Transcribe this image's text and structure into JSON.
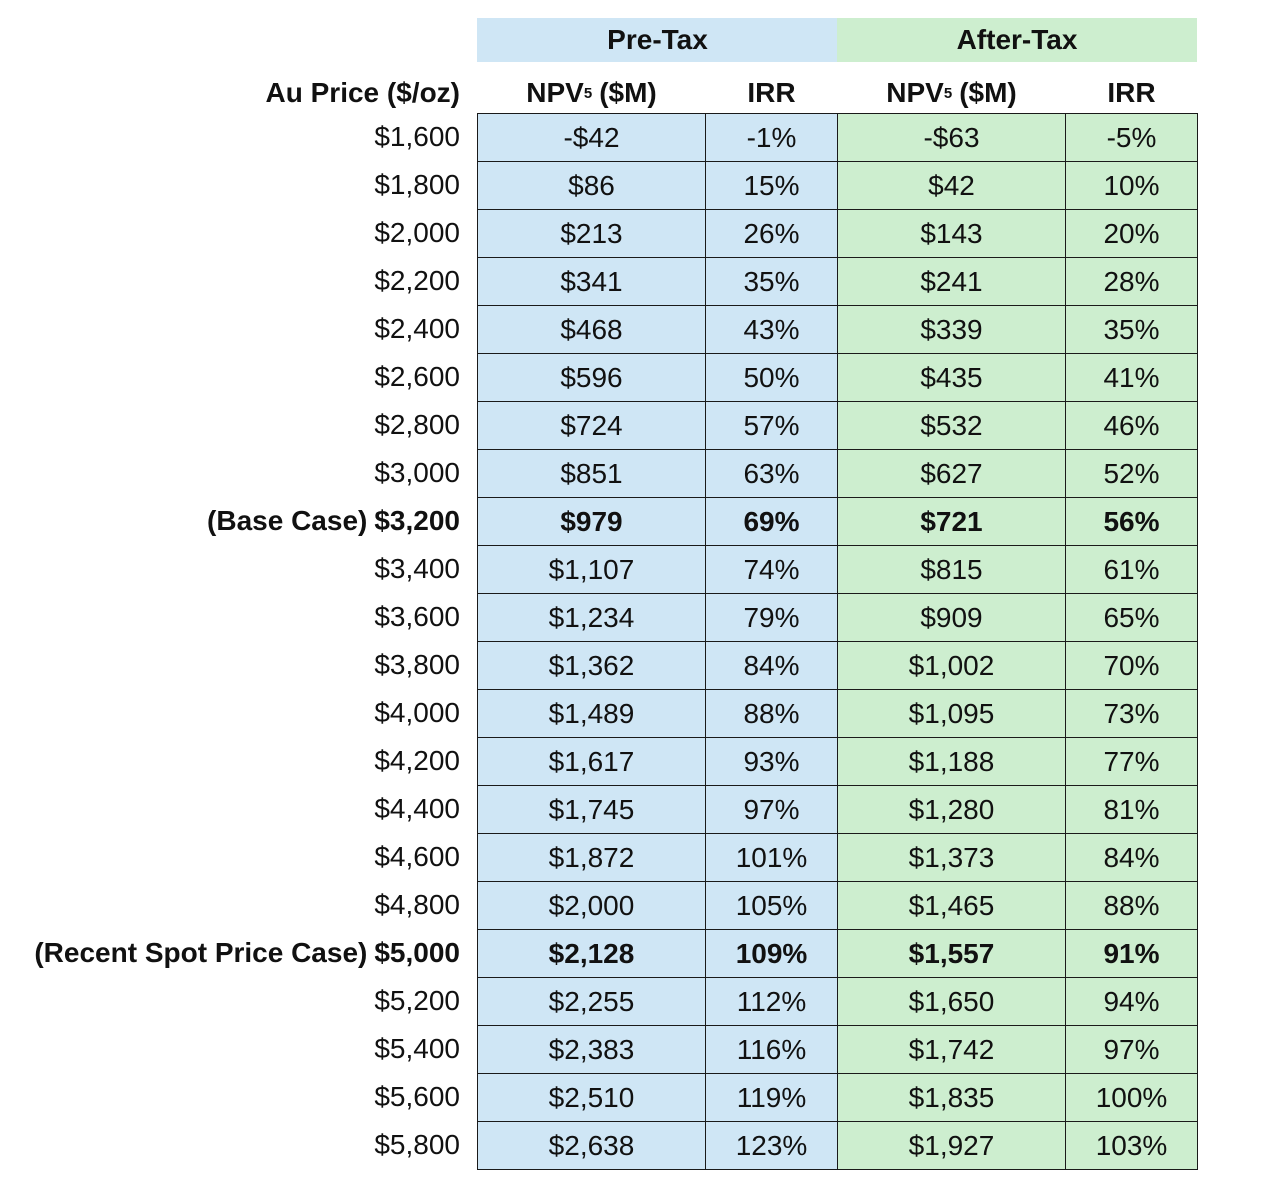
{
  "table": {
    "groups": [
      {
        "label": "Pre-Tax",
        "color": "#cfe6f5"
      },
      {
        "label": "After-Tax",
        "color": "#cdeecf"
      }
    ],
    "columns": [
      {
        "text": "Au Price ($/oz)"
      },
      {
        "main": "NPV",
        "sub": "5",
        "unit": "($M)"
      },
      {
        "text": "IRR"
      },
      {
        "main": "NPV",
        "sub": "5",
        "unit": "($M)"
      },
      {
        "text": "IRR"
      }
    ],
    "rows": [
      {
        "cells": [
          "$1,600",
          "-$42",
          "-1%",
          "-$63",
          "-5%"
        ]
      },
      {
        "cells": [
          "$1,800",
          "$86",
          "15%",
          "$42",
          "10%"
        ]
      },
      {
        "cells": [
          "$2,000",
          "$213",
          "26%",
          "$143",
          "20%"
        ]
      },
      {
        "cells": [
          "$2,200",
          "$341",
          "35%",
          "$241",
          "28%"
        ]
      },
      {
        "cells": [
          "$2,400",
          "$468",
          "43%",
          "$339",
          "35%"
        ]
      },
      {
        "cells": [
          "$2,600",
          "$596",
          "50%",
          "$435",
          "41%"
        ]
      },
      {
        "cells": [
          "$2,800",
          "$724",
          "57%",
          "$532",
          "46%"
        ]
      },
      {
        "cells": [
          "$3,000",
          "$851",
          "63%",
          "$627",
          "52%"
        ]
      },
      {
        "note": "(Base Case)",
        "bold": true,
        "cells": [
          "$3,200",
          "$979",
          "69%",
          "$721",
          "56%"
        ]
      },
      {
        "cells": [
          "$3,400",
          "$1,107",
          "74%",
          "$815",
          "61%"
        ]
      },
      {
        "cells": [
          "$3,600",
          "$1,234",
          "79%",
          "$909",
          "65%"
        ]
      },
      {
        "cells": [
          "$3,800",
          "$1,362",
          "84%",
          "$1,002",
          "70%"
        ]
      },
      {
        "cells": [
          "$4,000",
          "$1,489",
          "88%",
          "$1,095",
          "73%"
        ]
      },
      {
        "cells": [
          "$4,200",
          "$1,617",
          "93%",
          "$1,188",
          "77%"
        ]
      },
      {
        "cells": [
          "$4,400",
          "$1,745",
          "97%",
          "$1,280",
          "81%"
        ]
      },
      {
        "cells": [
          "$4,600",
          "$1,872",
          "101%",
          "$1,373",
          "84%"
        ]
      },
      {
        "cells": [
          "$4,800",
          "$2,000",
          "105%",
          "$1,465",
          "88%"
        ]
      },
      {
        "note": "(Recent Spot Price Case)",
        "bold": true,
        "cells": [
          "$5,000",
          "$2,128",
          "109%",
          "$1,557",
          "91%"
        ]
      },
      {
        "cells": [
          "$5,200",
          "$2,255",
          "112%",
          "$1,650",
          "94%"
        ]
      },
      {
        "cells": [
          "$5,400",
          "$2,383",
          "116%",
          "$1,742",
          "97%"
        ]
      },
      {
        "cells": [
          "$5,600",
          "$2,510",
          "119%",
          "$1,835",
          "100%"
        ]
      },
      {
        "cells": [
          "$5,800",
          "$2,638",
          "123%",
          "$1,927",
          "103%"
        ]
      }
    ]
  }
}
